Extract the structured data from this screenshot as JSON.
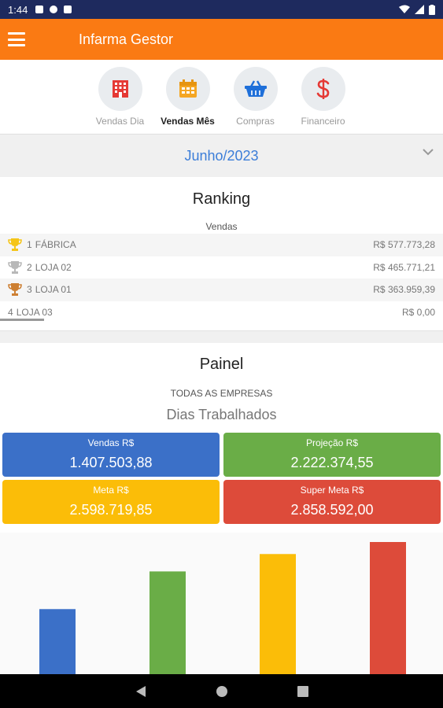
{
  "statusbar": {
    "time": "1:44"
  },
  "app": {
    "title": "Infarma Gestor"
  },
  "tabs": [
    {
      "label": "Vendas Dia",
      "icon": "building-icon",
      "color": "#e53935"
    },
    {
      "label": "Vendas Mês",
      "icon": "calendar-icon",
      "color": "#f5a623"
    },
    {
      "label": "Compras",
      "icon": "basket-icon",
      "color": "#1e6fd9"
    },
    {
      "label": "Financeiro",
      "icon": "dollar-icon",
      "color": "#e53935"
    }
  ],
  "month": {
    "selected": "Junho/2023"
  },
  "ranking": {
    "title": "Ranking",
    "subtitle": "Vendas",
    "rows": [
      {
        "pos": "1",
        "name": "FÁBRICA",
        "value": "R$ 577.773,28",
        "trophy": "gold"
      },
      {
        "pos": "2",
        "name": "LOJA 02",
        "value": "R$ 465.771,21",
        "trophy": "silver"
      },
      {
        "pos": "3",
        "name": "LOJA 01",
        "value": "R$ 363.959,39",
        "trophy": "bronze"
      },
      {
        "pos": "4",
        "name": "LOJA 03",
        "value": "R$ 0,00",
        "trophy": "none"
      }
    ]
  },
  "painel": {
    "title": "Painel",
    "scope": "TODAS AS EMPRESAS",
    "subtitle": "Dias Trabalhados",
    "cards": {
      "vendas": {
        "label": "Vendas R$",
        "value": "1.407.503,88",
        "color": "#3b70c8"
      },
      "projecao": {
        "label": "Projeção R$",
        "value": "2.222.374,55",
        "color": "#6aad47"
      },
      "meta": {
        "label": "Meta R$",
        "value": "2.598.719,85",
        "color": "#fbbd08"
      },
      "super_meta": {
        "label": "Super Meta R$",
        "value": "2.858.592,00",
        "color": "#dd4b3a"
      }
    }
  },
  "chart_data": {
    "type": "bar",
    "categories": [
      "",
      "",
      "",
      ""
    ],
    "values": [
      1407503.88,
      2222374.55,
      2598719.85,
      2858592.0
    ],
    "colors": [
      "#3b70c8",
      "#6aad47",
      "#fbbd08",
      "#dd4b3a"
    ],
    "grid": false
  }
}
